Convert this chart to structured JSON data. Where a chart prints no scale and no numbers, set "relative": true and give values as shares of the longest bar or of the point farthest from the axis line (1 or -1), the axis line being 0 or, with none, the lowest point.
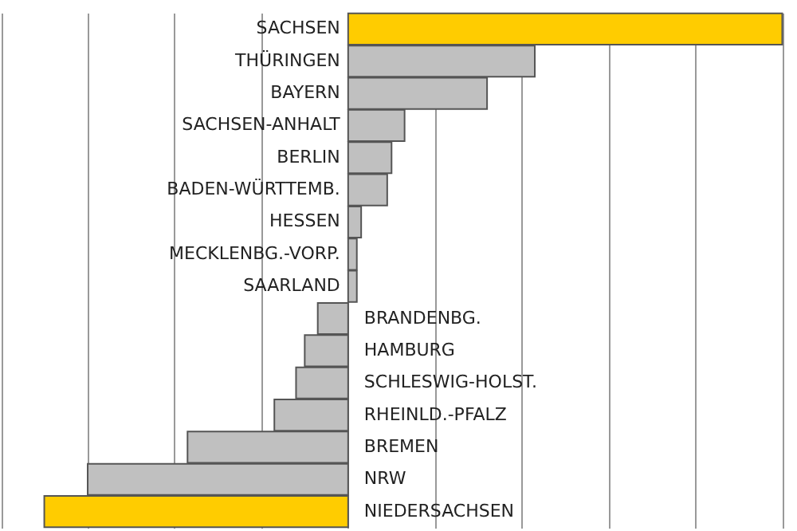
{
  "chart_data": {
    "type": "bar",
    "orientation": "horizontal",
    "relative": true,
    "grid": "x",
    "categories": [
      "SACHSEN",
      "THÜRINGEN",
      "BAYERN",
      "SACHSEN-ANHALT",
      "BERLIN",
      "BADEN-WÜRTTEMB.",
      "HESSEN",
      "MECKLENBG.-VORP.",
      "SAARLAND",
      "BRANDENBG.",
      "HAMBURG",
      "SCHLESWIG-HOLST.",
      "RHEINLD.-PFALZ",
      "BREMEN",
      "NRW",
      "NIEDERSACHSEN"
    ],
    "values": [
      1,
      0.43,
      0.32,
      0.13,
      0.1,
      0.09,
      0.03,
      0.02,
      0.02,
      -0.07,
      -0.1,
      -0.12,
      -0.17,
      -0.37,
      -0.6,
      -0.7
    ],
    "colors": [
      "#ffcc00",
      "#c0c0c0",
      "#c0c0c0",
      "#c0c0c0",
      "#c0c0c0",
      "#c0c0c0",
      "#c0c0c0",
      "#c0c0c0",
      "#c0c0c0",
      "#c0c0c0",
      "#c0c0c0",
      "#c0c0c0",
      "#c0c0c0",
      "#c0c0c0",
      "#c0c0c0",
      "#ffcc00"
    ]
  }
}
